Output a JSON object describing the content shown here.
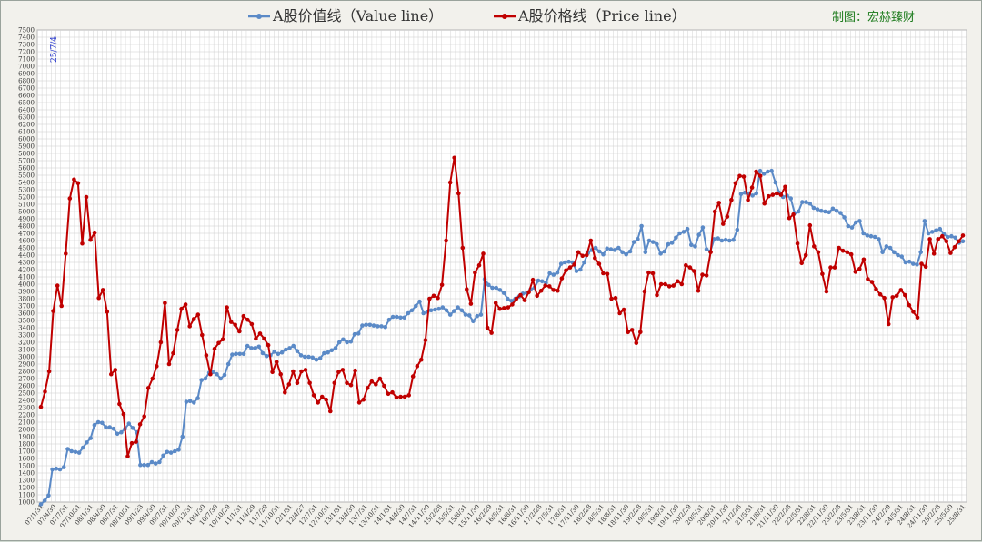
{
  "chart_data": {
    "type": "line",
    "title": "",
    "xlabel": "",
    "ylabel": "",
    "ylim": [
      1000,
      7500
    ],
    "y_step": 100,
    "grid": true,
    "legend_position": "top-center",
    "annotation": "25/7/4",
    "credit": "制图：宏赫臻财",
    "x_ticks": [
      "07/1/31",
      "07/4/30",
      "07/7/31",
      "07/10/31",
      "08/1/31",
      "08/4/30",
      "08/7/31",
      "08/10/31",
      "09/1/23",
      "09/4/30",
      "09/7/31",
      "09/10/30",
      "09/12/31",
      "10/4/30",
      "10/7/30",
      "10/10/29",
      "11/1/31",
      "11/4/29",
      "11/7/29",
      "11/10/31",
      "12/1/31",
      "12/4/27",
      "12/7/31",
      "12/10/31",
      "13/1/31",
      "13/4/30",
      "13/7/31",
      "13/10/31",
      "14/1/31",
      "14/4/30",
      "14/7/31",
      "14/11/30",
      "15/2/28",
      "15/5/31",
      "15/8/31",
      "15/11/30",
      "16/2/29",
      "16/5/31",
      "16/8/31",
      "16/11/30",
      "17/2/28",
      "17/5/31",
      "17/8/31",
      "17/11/30",
      "18/2/28",
      "18/5/31",
      "18/8/31",
      "18/11/30",
      "19/2/28",
      "19/5/31",
      "19/8/31",
      "19/11/30",
      "20/2/29",
      "20/5/31",
      "20/8/31",
      "20/11/30",
      "21/2/28",
      "21/5/31",
      "21/8/31",
      "21/11/30",
      "22/2/28",
      "22/5/31",
      "22/8/31",
      "22/11/30",
      "23/2/28",
      "23/5/31",
      "23/8/31",
      "23/11/30",
      "24/2/29",
      "24/5/31",
      "24/8/31",
      "24/11/30",
      "25/2/28",
      "25/5/30",
      "25/8/31"
    ],
    "series": [
      {
        "name": "A股价值线（Value line）",
        "color": "#5b8ac7",
        "values": [
          970,
          1020,
          1090,
          1450,
          1460,
          1450,
          1480,
          1730,
          1700,
          1690,
          1680,
          1750,
          1820,
          1880,
          2060,
          2100,
          2090,
          2030,
          2030,
          2010,
          1940,
          1960,
          2010,
          2080,
          2020,
          1960,
          1510,
          1510,
          1510,
          1550,
          1530,
          1550,
          1640,
          1690,
          1680,
          1700,
          1720,
          1900,
          2380,
          2390,
          2370,
          2430,
          2680,
          2700,
          2780,
          2790,
          2760,
          2700,
          2750,
          2900,
          3030,
          3040,
          3040,
          3040,
          3150,
          3120,
          3120,
          3140,
          3050,
          3010,
          3020,
          3070,
          3040,
          3060,
          3100,
          3120,
          3150,
          3080,
          3020,
          3000,
          3000,
          2990,
          2960,
          2980,
          3050,
          3060,
          3090,
          3120,
          3200,
          3240,
          3200,
          3210,
          3310,
          3320,
          3430,
          3440,
          3440,
          3430,
          3420,
          3420,
          3410,
          3510,
          3550,
          3550,
          3540,
          3540,
          3600,
          3640,
          3700,
          3760,
          3600,
          3620,
          3640,
          3650,
          3660,
          3680,
          3640,
          3580,
          3630,
          3680,
          3640,
          3580,
          3570,
          3490,
          3560,
          3580,
          4070,
          3990,
          3950,
          3950,
          3920,
          3880,
          3800,
          3770,
          3800,
          3830,
          3870,
          3880,
          3930,
          3950,
          4050,
          4040,
          4020,
          4150,
          4130,
          4160,
          4280,
          4300,
          4310,
          4300,
          4180,
          4200,
          4300,
          4430,
          4470,
          4500,
          4450,
          4410,
          4490,
          4480,
          4470,
          4500,
          4440,
          4410,
          4450,
          4580,
          4620,
          4800,
          4440,
          4600,
          4580,
          4550,
          4420,
          4450,
          4550,
          4570,
          4640,
          4700,
          4720,
          4760,
          4540,
          4520,
          4680,
          4780,
          4480,
          4450,
          4620,
          4630,
          4600,
          4610,
          4600,
          4610,
          4750,
          5240,
          5260,
          5250,
          5220,
          5250,
          5560,
          5520,
          5550,
          5560,
          5400,
          5260,
          5200,
          5220,
          5180,
          4980,
          5000,
          5130,
          5130,
          5110,
          5050,
          5030,
          5010,
          5000,
          4990,
          5040,
          5010,
          4980,
          4920,
          4800,
          4780,
          4850,
          4870,
          4700,
          4670,
          4660,
          4650,
          4620,
          4440,
          4520,
          4500,
          4440,
          4400,
          4380,
          4300,
          4310,
          4280,
          4270,
          4440,
          4870,
          4700,
          4720,
          4740,
          4760,
          4690,
          4650,
          4660,
          4640,
          4570,
          4590
        ]
      },
      {
        "name": "A股价格线（Price line）",
        "color": "#c00000",
        "values": [
          2310,
          2520,
          2800,
          3630,
          3980,
          3700,
          4420,
          5180,
          5440,
          5390,
          4560,
          5200,
          4610,
          4710,
          3810,
          3920,
          3620,
          2760,
          2820,
          2350,
          2210,
          1630,
          1810,
          1830,
          2070,
          2180,
          2570,
          2700,
          2870,
          3200,
          3740,
          2900,
          3050,
          3370,
          3660,
          3720,
          3420,
          3520,
          3580,
          3300,
          3020,
          2760,
          3110,
          3190,
          3240,
          3680,
          3480,
          3440,
          3350,
          3560,
          3510,
          3450,
          3250,
          3320,
          3250,
          3160,
          2790,
          2930,
          2760,
          2510,
          2620,
          2800,
          2640,
          2800,
          2820,
          2640,
          2470,
          2370,
          2450,
          2410,
          2250,
          2640,
          2790,
          2820,
          2640,
          2610,
          2810,
          2370,
          2410,
          2570,
          2660,
          2620,
          2700,
          2600,
          2490,
          2510,
          2440,
          2450,
          2450,
          2470,
          2730,
          2870,
          2960,
          3230,
          3800,
          3840,
          3810,
          3990,
          4600,
          5400,
          5740,
          5250,
          4500,
          3930,
          3730,
          4160,
          4260,
          4420,
          3400,
          3330,
          3740,
          3660,
          3670,
          3680,
          3720,
          3800,
          3850,
          3780,
          3890,
          4060,
          3840,
          3910,
          3980,
          3970,
          3920,
          3910,
          4080,
          4190,
          4230,
          4270,
          4440,
          4390,
          4400,
          4600,
          4360,
          4280,
          4150,
          4140,
          3800,
          3810,
          3600,
          3650,
          3340,
          3370,
          3190,
          3340,
          3900,
          4160,
          4150,
          3850,
          4000,
          4000,
          3970,
          3980,
          4040,
          4000,
          4260,
          4230,
          4180,
          3910,
          4130,
          4120,
          4440,
          5000,
          5120,
          4830,
          4930,
          5160,
          5390,
          5490,
          5480,
          5160,
          5330,
          5550,
          5490,
          5110,
          5210,
          5230,
          5250,
          5230,
          5340,
          4910,
          4960,
          4560,
          4290,
          4400,
          4810,
          4520,
          4440,
          4140,
          3900,
          4230,
          4230,
          4500,
          4460,
          4440,
          4410,
          4170,
          4210,
          4340,
          4070,
          4030,
          3930,
          3860,
          3810,
          3450,
          3820,
          3840,
          3920,
          3850,
          3710,
          3620,
          3540,
          4280,
          4240,
          4620,
          4420,
          4620,
          4660,
          4590,
          4430,
          4510,
          4590,
          4670
        ]
      }
    ]
  }
}
